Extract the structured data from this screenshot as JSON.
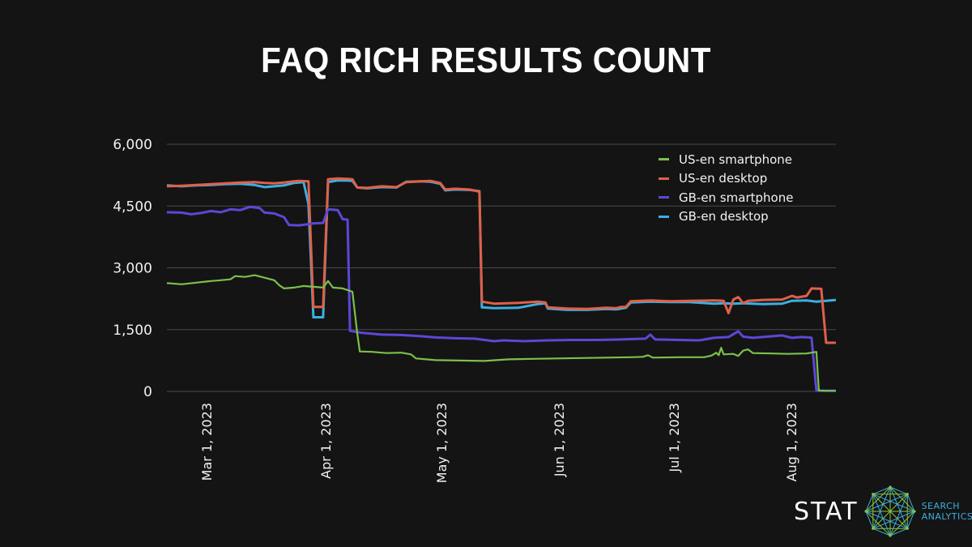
{
  "title": "FAQ RICH RESULTS COUNT",
  "logo": {
    "name": "STAT",
    "sub_line1": "SEARCH",
    "sub_line2": "ANALYTICS"
  },
  "chart_data": {
    "type": "line",
    "title": "FAQ RICH RESULTS COUNT",
    "xlabel": "",
    "ylabel": "",
    "ylim": [
      0,
      6000
    ],
    "yticks": [
      0,
      1500,
      3000,
      4500,
      6000
    ],
    "ytick_labels": [
      "0",
      "1,500",
      "3,000",
      "4,500",
      "6,000"
    ],
    "xtick_labels": [
      "Mar 1, 2023",
      "Apr 1, 2023",
      "May 1, 2023",
      "Jun 1, 2023",
      "Jul 1, 2023",
      "Aug 1, 2023"
    ],
    "x_range": [
      "2023-02-08",
      "2023-08-15"
    ],
    "grid": true,
    "legend_position": "upper right",
    "series": [
      {
        "name": "US-en smartphone",
        "color": "#7cc04a",
        "points": [
          [
            0,
            2630
          ],
          [
            6,
            2600
          ],
          [
            12,
            2640
          ],
          [
            18,
            2680
          ],
          [
            22,
            2700
          ],
          [
            26,
            2720
          ],
          [
            28,
            2800
          ],
          [
            32,
            2780
          ],
          [
            36,
            2820
          ],
          [
            40,
            2760
          ],
          [
            44,
            2700
          ],
          [
            46,
            2580
          ],
          [
            48,
            2500
          ],
          [
            52,
            2520
          ],
          [
            56,
            2560
          ],
          [
            60,
            2540
          ],
          [
            64,
            2520
          ],
          [
            66,
            2680
          ],
          [
            68,
            2520
          ],
          [
            72,
            2500
          ],
          [
            76,
            2420
          ],
          [
            78,
            1400
          ],
          [
            79,
            970
          ],
          [
            84,
            960
          ],
          [
            90,
            930
          ],
          [
            96,
            940
          ],
          [
            100,
            900
          ],
          [
            102,
            800
          ],
          [
            110,
            760
          ],
          [
            120,
            750
          ],
          [
            130,
            740
          ],
          [
            140,
            780
          ],
          [
            150,
            790
          ],
          [
            160,
            800
          ],
          [
            170,
            810
          ],
          [
            180,
            820
          ],
          [
            190,
            830
          ],
          [
            195,
            840
          ],
          [
            197,
            880
          ],
          [
            199,
            820
          ],
          [
            210,
            830
          ],
          [
            220,
            830
          ],
          [
            223,
            870
          ],
          [
            225,
            940
          ],
          [
            226,
            880
          ],
          [
            227,
            1060
          ],
          [
            228,
            900
          ],
          [
            232,
            910
          ],
          [
            234,
            860
          ],
          [
            236,
            990
          ],
          [
            238,
            1020
          ],
          [
            240,
            930
          ],
          [
            248,
            920
          ],
          [
            254,
            910
          ],
          [
            262,
            920
          ],
          [
            266,
            960
          ],
          [
            267,
            20
          ],
          [
            270,
            15
          ],
          [
            274,
            15
          ]
        ]
      },
      {
        "name": "US-en desktop",
        "color": "#e0604a",
        "points": [
          [
            0,
            4980
          ],
          [
            6,
            4990
          ],
          [
            12,
            5010
          ],
          [
            18,
            5030
          ],
          [
            24,
            5050
          ],
          [
            30,
            5070
          ],
          [
            36,
            5080
          ],
          [
            40,
            5060
          ],
          [
            44,
            5050
          ],
          [
            48,
            5070
          ],
          [
            52,
            5100
          ],
          [
            54,
            5110
          ],
          [
            58,
            5100
          ],
          [
            60,
            2050
          ],
          [
            64,
            2050
          ],
          [
            66,
            5150
          ],
          [
            70,
            5170
          ],
          [
            74,
            5160
          ],
          [
            76,
            5150
          ],
          [
            78,
            4950
          ],
          [
            82,
            4940
          ],
          [
            88,
            4980
          ],
          [
            94,
            4960
          ],
          [
            98,
            5080
          ],
          [
            104,
            5100
          ],
          [
            108,
            5110
          ],
          [
            112,
            5060
          ],
          [
            114,
            4900
          ],
          [
            118,
            4920
          ],
          [
            124,
            4900
          ],
          [
            128,
            4850
          ],
          [
            129,
            2180
          ],
          [
            134,
            2130
          ],
          [
            144,
            2150
          ],
          [
            152,
            2180
          ],
          [
            155,
            2160
          ],
          [
            156,
            2040
          ],
          [
            164,
            2010
          ],
          [
            172,
            2000
          ],
          [
            180,
            2030
          ],
          [
            184,
            2020
          ],
          [
            186,
            2050
          ],
          [
            188,
            2050
          ],
          [
            190,
            2190
          ],
          [
            198,
            2210
          ],
          [
            206,
            2190
          ],
          [
            214,
            2200
          ],
          [
            224,
            2210
          ],
          [
            228,
            2200
          ],
          [
            230,
            1900
          ],
          [
            232,
            2230
          ],
          [
            234,
            2290
          ],
          [
            236,
            2140
          ],
          [
            238,
            2200
          ],
          [
            244,
            2220
          ],
          [
            252,
            2230
          ],
          [
            256,
            2320
          ],
          [
            258,
            2280
          ],
          [
            262,
            2320
          ],
          [
            264,
            2500
          ],
          [
            268,
            2490
          ],
          [
            270,
            1180
          ],
          [
            274,
            1180
          ]
        ]
      },
      {
        "name": "GB-en smartphone",
        "color": "#5b48d6",
        "points": [
          [
            0,
            4350
          ],
          [
            6,
            4340
          ],
          [
            10,
            4300
          ],
          [
            14,
            4330
          ],
          [
            18,
            4380
          ],
          [
            22,
            4350
          ],
          [
            26,
            4420
          ],
          [
            30,
            4400
          ],
          [
            34,
            4480
          ],
          [
            38,
            4450
          ],
          [
            40,
            4340
          ],
          [
            44,
            4320
          ],
          [
            48,
            4230
          ],
          [
            50,
            4040
          ],
          [
            54,
            4030
          ],
          [
            58,
            4060
          ],
          [
            60,
            4080
          ],
          [
            64,
            4090
          ],
          [
            66,
            4420
          ],
          [
            70,
            4400
          ],
          [
            72,
            4180
          ],
          [
            74,
            4170
          ],
          [
            75,
            1470
          ],
          [
            80,
            1420
          ],
          [
            88,
            1380
          ],
          [
            96,
            1370
          ],
          [
            104,
            1340
          ],
          [
            110,
            1310
          ],
          [
            118,
            1290
          ],
          [
            126,
            1280
          ],
          [
            134,
            1220
          ],
          [
            138,
            1240
          ],
          [
            146,
            1220
          ],
          [
            156,
            1240
          ],
          [
            166,
            1250
          ],
          [
            176,
            1250
          ],
          [
            186,
            1260
          ],
          [
            196,
            1280
          ],
          [
            198,
            1380
          ],
          [
            200,
            1260
          ],
          [
            210,
            1250
          ],
          [
            218,
            1240
          ],
          [
            224,
            1300
          ],
          [
            230,
            1320
          ],
          [
            234,
            1460
          ],
          [
            236,
            1330
          ],
          [
            240,
            1300
          ],
          [
            246,
            1330
          ],
          [
            252,
            1360
          ],
          [
            256,
            1300
          ],
          [
            260,
            1320
          ],
          [
            263,
            1310
          ],
          [
            264,
            1300
          ],
          [
            266,
            20
          ],
          [
            270,
            15
          ],
          [
            274,
            15
          ]
        ]
      },
      {
        "name": "GB-en desktop",
        "color": "#3ab0e2",
        "points": [
          [
            0,
            5000
          ],
          [
            6,
            4980
          ],
          [
            12,
            5000
          ],
          [
            18,
            5010
          ],
          [
            24,
            5030
          ],
          [
            30,
            5040
          ],
          [
            36,
            5010
          ],
          [
            40,
            4960
          ],
          [
            44,
            4980
          ],
          [
            48,
            5000
          ],
          [
            52,
            5060
          ],
          [
            56,
            5080
          ],
          [
            58,
            4550
          ],
          [
            60,
            1800
          ],
          [
            64,
            1800
          ],
          [
            66,
            5080
          ],
          [
            70,
            5120
          ],
          [
            74,
            5120
          ],
          [
            76,
            5110
          ],
          [
            78,
            4950
          ],
          [
            82,
            4930
          ],
          [
            88,
            4960
          ],
          [
            94,
            4950
          ],
          [
            98,
            5090
          ],
          [
            104,
            5100
          ],
          [
            108,
            5090
          ],
          [
            112,
            5040
          ],
          [
            114,
            4880
          ],
          [
            118,
            4900
          ],
          [
            124,
            4890
          ],
          [
            128,
            4860
          ],
          [
            129,
            2040
          ],
          [
            134,
            2020
          ],
          [
            144,
            2030
          ],
          [
            152,
            2120
          ],
          [
            155,
            2140
          ],
          [
            156,
            2010
          ],
          [
            164,
            1980
          ],
          [
            172,
            1980
          ],
          [
            180,
            2000
          ],
          [
            184,
            1990
          ],
          [
            186,
            2010
          ],
          [
            188,
            2030
          ],
          [
            190,
            2160
          ],
          [
            198,
            2180
          ],
          [
            206,
            2170
          ],
          [
            214,
            2170
          ],
          [
            224,
            2130
          ],
          [
            228,
            2140
          ],
          [
            232,
            2130
          ],
          [
            236,
            2140
          ],
          [
            244,
            2120
          ],
          [
            252,
            2130
          ],
          [
            256,
            2200
          ],
          [
            262,
            2210
          ],
          [
            266,
            2180
          ],
          [
            270,
            2200
          ],
          [
            274,
            2220
          ]
        ]
      }
    ]
  }
}
